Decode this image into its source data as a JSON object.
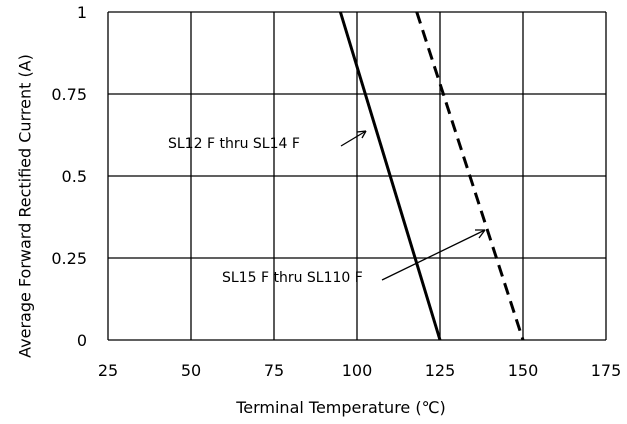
{
  "chart_data": {
    "type": "line",
    "title": "",
    "xlabel": "Terminal Temperature (℃)",
    "ylabel": "Average Forward Rectified Current (A)",
    "xlim": [
      25,
      175
    ],
    "ylim": [
      0,
      1
    ],
    "x_ticks": [
      25,
      50,
      75,
      100,
      125,
      150,
      175
    ],
    "x_tick_labels": [
      "25",
      "50",
      "75",
      "100",
      "125",
      "150",
      "175"
    ],
    "y_ticks": [
      0,
      0.25,
      0.5,
      0.75,
      1
    ],
    "y_tick_labels": [
      "0",
      "0.25",
      "0.5",
      "0.75",
      "1"
    ],
    "grid": true,
    "series": [
      {
        "name": "SL12 F thru SL14 F",
        "style": "solid",
        "color": "#000000",
        "x": [
          95,
          125
        ],
        "y": [
          1,
          0
        ]
      },
      {
        "name": "SL15 F thru SL110 F",
        "style": "dashed",
        "color": "#000000",
        "x": [
          118,
          150
        ],
        "y": [
          1,
          0
        ]
      }
    ],
    "annotations": [
      {
        "text": "SL12 F thru SL14 F",
        "series": 0
      },
      {
        "text": "SL15 F thru SL110 F",
        "series": 1
      }
    ]
  }
}
